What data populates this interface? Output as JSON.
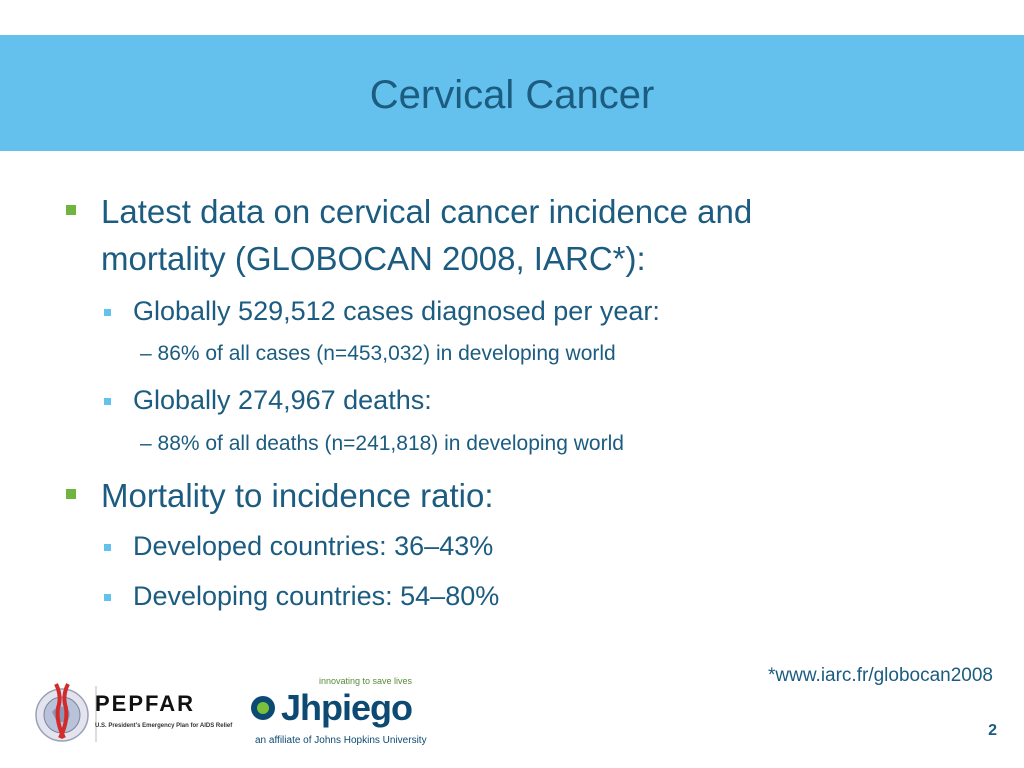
{
  "slide": {
    "title": "Cervical Cancer",
    "bullets": {
      "b1_line1": "Latest data on cervical cancer incidence and",
      "b1_line2": "mortality (GLOBOCAN 2008, IARC*):",
      "b1_sub1": "Globally 529,512 cases diagnosed per year:",
      "b1_sub1_detail": "– 86% of all cases (n=453,032) in developing world",
      "b1_sub2": "Globally 274,967 deaths:",
      "b1_sub2_detail": "– 88% of all deaths (n=241,818) in developing world",
      "b2": "Mortality to incidence ratio:",
      "b2_sub1": "Developed countries: 36–43%",
      "b2_sub2": "Developing countries: 54–80%"
    },
    "footnote": "*www.iarc.fr/globocan2008",
    "slide_number": "2"
  },
  "logos": {
    "pepfar_word": "PEPFAR",
    "pepfar_sub": "U.S. President's Emergency Plan for AIDS Relief",
    "jhpiego_tagline": "innovating to save lives",
    "jhpiego_word": "Jhpiego",
    "jhpiego_affiliation": "an affiliate of Johns Hopkins University"
  },
  "colors": {
    "title_band": "#64c0ec",
    "text": "#1b5c80",
    "bullet_level1": "#6fb43f",
    "bullet_level2": "#64c0ec"
  }
}
